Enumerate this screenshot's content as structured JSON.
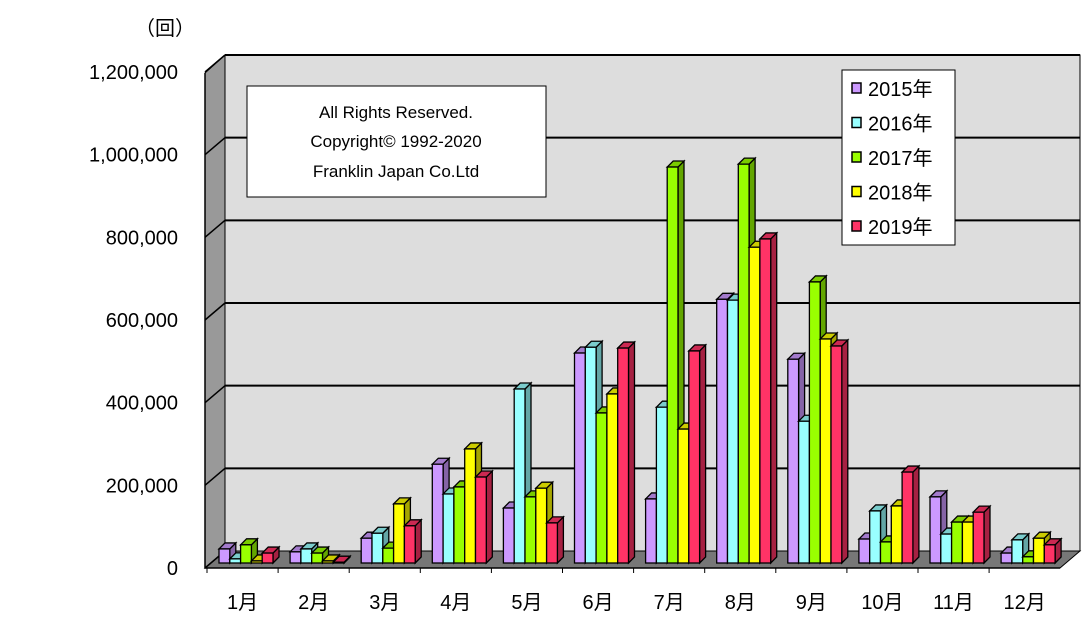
{
  "chart_data": {
    "type": "bar",
    "style": "3d-clustered",
    "unit_label": "（回）",
    "categories": [
      "1月",
      "2月",
      "3月",
      "4月",
      "5月",
      "6月",
      "7月",
      "8月",
      "9月",
      "10月",
      "11月",
      "12月"
    ],
    "series": [
      {
        "name": "2015年",
        "color": "#CC99FF",
        "values": [
          34000,
          27000,
          60000,
          239000,
          133000,
          508000,
          155000,
          638000,
          493000,
          58000,
          160000,
          24000
        ]
      },
      {
        "name": "2016年",
        "color": "#99FFFF",
        "values": [
          10000,
          34000,
          72000,
          167000,
          421000,
          522000,
          377000,
          636000,
          343000,
          126000,
          70000,
          56000
        ]
      },
      {
        "name": "2017年",
        "color": "#99FF00",
        "values": [
          44000,
          24000,
          36000,
          184000,
          160000,
          363000,
          958000,
          965000,
          680000,
          51000,
          99000,
          15000
        ]
      },
      {
        "name": "2018年",
        "color": "#FFFF00",
        "values": [
          5000,
          5000,
          143000,
          276000,
          181000,
          409000,
          324000,
          764000,
          542000,
          138000,
          99000,
          60000
        ]
      },
      {
        "name": "2019年",
        "color": "#FF3366",
        "values": [
          24000,
          2000,
          90000,
          208000,
          97000,
          520000,
          513000,
          784000,
          525000,
          220000,
          123000,
          44000
        ]
      }
    ],
    "yticks": [
      "0",
      "200,000",
      "400,000",
      "600,000",
      "800,000",
      "1,000,000",
      "1,200,000"
    ],
    "ylim": [
      0,
      1200000
    ],
    "grid": true,
    "legend": "top-right",
    "copyright": [
      "All Rights Reserved.",
      "Copyright© 1992-2020",
      "Franklin Japan Co.Ltd"
    ]
  }
}
